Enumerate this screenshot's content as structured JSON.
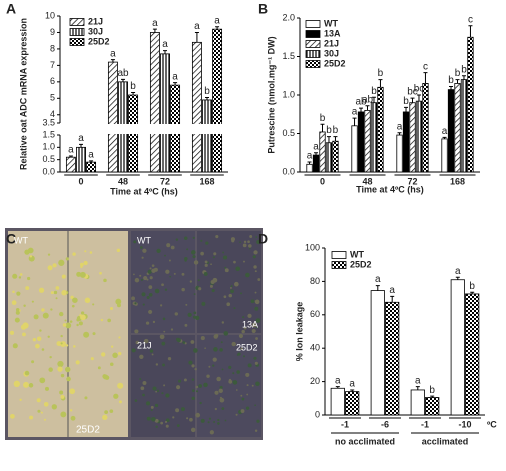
{
  "chart_data": [
    {
      "type": "bar",
      "panel": "A",
      "y_label": "Relative oat ADC mRNA expression",
      "x_label": "Time at 4ºC (hs)",
      "categories": [
        "0",
        "48",
        "72",
        "168"
      ],
      "ylim_lower": [
        0,
        1.5
      ],
      "yticks_lower": [
        {
          "value": 0,
          "label": "0.0"
        },
        0.5,
        {
          "value": 1,
          "label": "1.0"
        },
        1.5
      ],
      "ylim_upper": [
        3.5,
        10
      ],
      "yticks_upper": [
        3.5,
        4,
        5,
        6,
        7,
        8,
        9,
        10
      ],
      "series": [
        {
          "name": "21J",
          "color": "#ffffff",
          "pattern": "hatch",
          "values": [
            0.6,
            7.2,
            9.0,
            8.4
          ],
          "errors": [
            0.05,
            0.15,
            0.2,
            0.6
          ],
          "letters": [
            "a",
            "a",
            "a",
            "a"
          ]
        },
        {
          "name": "30J",
          "color": "#ffffff",
          "pattern": "vertical",
          "values": [
            1.0,
            6.0,
            7.7,
            4.9
          ],
          "errors": [
            0.12,
            0.15,
            0.2,
            0.15
          ],
          "letters": [
            "a",
            "ab",
            "a",
            "b"
          ]
        },
        {
          "name": "25D2",
          "color": "#ffffff",
          "pattern": "check",
          "values": [
            0.4,
            5.2,
            5.8,
            9.2
          ],
          "errors": [
            0.05,
            0.15,
            0.15,
            0.15
          ],
          "letters": [
            "a",
            "b",
            "a",
            "a"
          ]
        }
      ]
    },
    {
      "type": "bar",
      "panel": "B",
      "y_label": "Putrescine (nmol.mg⁻¹ DW)",
      "x_label": "Time at 4ºC (hs)",
      "categories": [
        "0",
        "48",
        "72",
        "168"
      ],
      "ylim": [
        0,
        2
      ],
      "yticks": [
        {
          "value": 0,
          "label": "0.0"
        },
        0.5,
        {
          "value": 1,
          "label": "1.0"
        },
        1.5,
        {
          "value": 2,
          "label": "2.0"
        }
      ],
      "series": [
        {
          "name": "WT",
          "color": "#ffffff",
          "values": [
            0.1,
            0.6,
            0.48,
            0.43
          ],
          "errors": [
            0.03,
            0.1,
            0.03,
            0.02
          ],
          "letters": [
            "a",
            "a",
            "a",
            "a"
          ]
        },
        {
          "name": "13A",
          "color": "#000000",
          "values": [
            0.22,
            0.78,
            0.78,
            1.07
          ],
          "errors": [
            0.03,
            0.05,
            0.06,
            0.04
          ],
          "letters": [
            "a",
            "ab",
            "b",
            "b"
          ]
        },
        {
          "name": "21J",
          "color": "#ffffff",
          "pattern": "hatch",
          "values": [
            0.52,
            0.8,
            0.9,
            1.15
          ],
          "errors": [
            0.1,
            0.06,
            0.06,
            0.05
          ],
          "letters": [
            "b",
            "ab",
            "bc",
            "b"
          ]
        },
        {
          "name": "30J",
          "color": "#ffffff",
          "pattern": "vertical",
          "values": [
            0.38,
            0.9,
            0.92,
            1.2
          ],
          "errors": [
            0.08,
            0.07,
            0.08,
            0.05
          ],
          "letters": [
            "b",
            "b",
            "bc",
            "b"
          ]
        },
        {
          "name": "25D2",
          "color": "#ffffff",
          "pattern": "check",
          "values": [
            0.4,
            1.1,
            1.15,
            1.75
          ],
          "errors": [
            0.06,
            0.1,
            0.14,
            0.15
          ],
          "letters": [
            "b",
            "b",
            "c",
            "c"
          ]
        }
      ]
    },
    {
      "type": "bar",
      "panel": "D",
      "y_label": "% Ion leakage",
      "x_unit": "ºC",
      "categories": [
        "-1",
        "-6",
        "-1",
        "-10"
      ],
      "groups": [
        "no acclimated",
        "acclimated"
      ],
      "ylim": [
        0,
        100
      ],
      "yticks": [
        0,
        20,
        40,
        60,
        80,
        100
      ],
      "series": [
        {
          "name": "WT",
          "color": "#ffffff",
          "values": [
            16,
            74.5,
            15,
            81
          ],
          "errors": [
            1,
            3,
            2,
            1.5
          ],
          "letters": [
            "a",
            "a",
            "a",
            "a"
          ]
        },
        {
          "name": "25D2",
          "color": "#ffffff",
          "pattern": "check",
          "values": [
            14,
            67.5,
            10.5,
            72.5
          ],
          "errors": [
            1,
            3.5,
            0.8,
            1
          ],
          "letters": [
            "a",
            "a",
            "b",
            "b"
          ]
        }
      ]
    }
  ],
  "photo": {
    "panel": "C",
    "labels": [
      "WT",
      "25D2",
      "WT",
      "13A",
      "21J",
      "25D2"
    ]
  }
}
